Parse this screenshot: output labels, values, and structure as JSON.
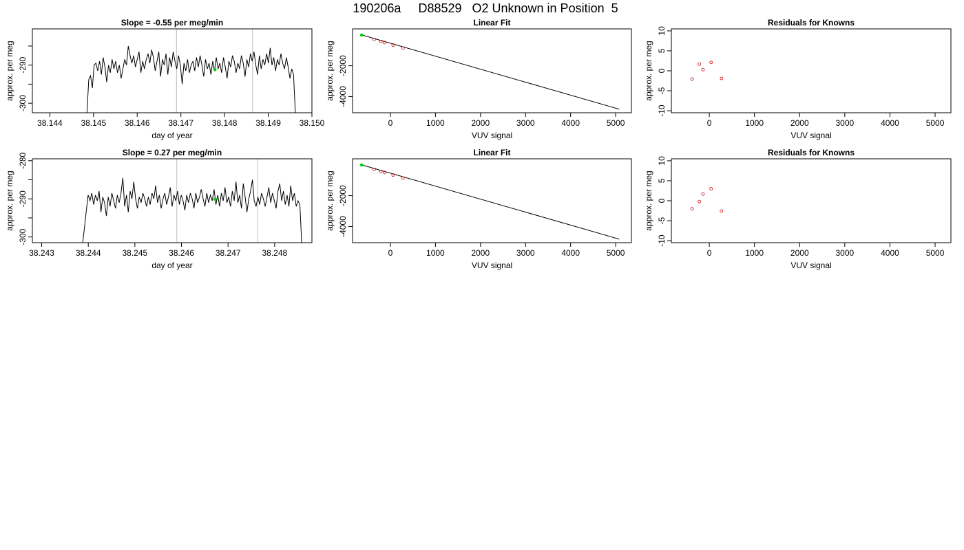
{
  "page": {
    "title": "190206a     D88529   O2 Unknown in Position  5"
  },
  "chart_data": [
    {
      "type": "line",
      "title": "Slope =  -0.55  per meg/min",
      "xlabel": "day of year",
      "ylabel": "approx. per meg",
      "xlim": [
        38.1436,
        38.15
      ],
      "ylim": [
        -302.5,
        -280.5
      ],
      "xticks": [
        38.144,
        38.145,
        38.146,
        38.147,
        38.148,
        38.149,
        38.15
      ],
      "xtick_labels": [
        "38.144",
        "38.145",
        "38.146",
        "38.147",
        "38.148",
        "38.149",
        "38.150"
      ],
      "yticks": [
        -300,
        -295,
        -290,
        -285
      ],
      "ytick_labels": [
        "-300",
        "",
        "-290",
        ""
      ],
      "vlines": [
        38.1469,
        38.14864
      ],
      "x_start": 38.14485,
      "x_end": 38.14962,
      "values": [
        -302.5,
        -293.8,
        -292.8,
        -296,
        -290,
        -289.5,
        -291.5,
        -289,
        -292.5,
        -288,
        -290.5,
        -294.5,
        -290,
        -292,
        -288.5,
        -291,
        -289,
        -292,
        -290,
        -293.5,
        -291,
        -288.5,
        -290,
        -285,
        -287.5,
        -289.5,
        -287.5,
        -290.5,
        -288.5,
        -286.5,
        -292,
        -289,
        -291,
        -288.5,
        -287,
        -289.5,
        -286,
        -288,
        -291.5,
        -289,
        -286.5,
        -293,
        -288.5,
        -290,
        -287,
        -292.5,
        -288,
        -290.5,
        -286.5,
        -289,
        -291,
        -287.5,
        -290,
        -295,
        -289.5,
        -291.5,
        -288.5,
        -292,
        -290,
        -289,
        -291.5,
        -288,
        -290.5,
        -287.5,
        -290,
        -293,
        -288.5,
        -291,
        -289.5,
        -292.5,
        -289,
        -291.5,
        -288,
        -291,
        -289.5,
        -292,
        -288,
        -290.5,
        -293.5,
        -289,
        -290.5,
        -287.5,
        -289,
        -292,
        -289.5,
        -291,
        -287.5,
        -289.5,
        -293,
        -288.5,
        -290.5,
        -287,
        -289,
        -286.5,
        -290,
        -292.5,
        -287.5,
        -291,
        -288.5,
        -290,
        -287,
        -289.5,
        -285.5,
        -290,
        -288,
        -291.5,
        -288.5,
        -290,
        -287,
        -289.5,
        -291,
        -288,
        -290.5,
        -293.5,
        -291,
        -292.5,
        -302.5
      ],
      "marker": {
        "x": 38.14778,
        "y": -291.2
      },
      "line_color": "#000000",
      "vline_color": "#bebebe",
      "marker_color": "#00cd00"
    },
    {
      "type": "scatter",
      "title": "Linear Fit",
      "xlabel": "VUV signal",
      "ylabel": "approx. per meg",
      "xlim": [
        -840,
        5350
      ],
      "ylim": [
        -5050,
        390
      ],
      "xticks": [
        0,
        1000,
        2000,
        3000,
        4000,
        5000
      ],
      "xtick_labels": [
        "0",
        "1000",
        "2000",
        "3000",
        "4000",
        "5000"
      ],
      "yticks": [
        -4000,
        -2000
      ],
      "ytick_labels": [
        "-4000",
        "-2000"
      ],
      "line": {
        "x": [
          -640,
          5080
        ],
        "y": [
          0,
          -4820
        ]
      },
      "knowns": {
        "x": [
          -360,
          -210,
          -130,
          60,
          280
        ],
        "y": [
          -300,
          -430,
          -500,
          -660,
          -850
        ]
      },
      "unknown": {
        "x": [
          -640
        ],
        "y": [
          -10
        ]
      },
      "line_color": "#000000",
      "known_color": "#cd0000",
      "unknown_color": "#00cd00"
    },
    {
      "type": "scatter",
      "title": "Residuals for Knowns",
      "xlabel": "VUV signal",
      "ylabel": "approx. per meg",
      "xlim": [
        -840,
        5350
      ],
      "ylim": [
        -10.5,
        10.5
      ],
      "xticks": [
        0,
        1000,
        2000,
        3000,
        4000,
        5000
      ],
      "xtick_labels": [
        "0",
        "1000",
        "2000",
        "3000",
        "4000",
        "5000"
      ],
      "yticks": [
        -10,
        -5,
        0,
        5,
        10
      ],
      "ytick_labels": [
        "-10",
        "-5",
        "0",
        "5",
        "10"
      ],
      "points": {
        "x": [
          -380,
          -220,
          -140,
          40,
          270
        ],
        "y": [
          -2.1,
          1.7,
          0.3,
          2.1,
          -1.9
        ]
      },
      "point_color": "#cd0000"
    },
    {
      "type": "line",
      "title": "Slope =  0.27  per meg/min",
      "xlabel": "day of year",
      "ylabel": "approx. per meg",
      "xlim": [
        38.2428,
        38.2488
      ],
      "ylim": [
        -301.5,
        -279.5
      ],
      "xticks": [
        38.243,
        38.244,
        38.245,
        38.246,
        38.247,
        38.248
      ],
      "xtick_labels": [
        "38.243",
        "38.244",
        "38.245",
        "38.246",
        "38.247",
        "38.248"
      ],
      "yticks": [
        -300,
        -295,
        -290,
        -285,
        -280
      ],
      "ytick_labels": [
        "-300",
        "",
        "-290",
        "",
        "-280"
      ],
      "vlines": [
        38.2459,
        38.24764
      ],
      "x_start": 38.24388,
      "x_end": 38.24858,
      "values": [
        -301.5,
        -297.5,
        -293,
        -289,
        -290.5,
        -288.5,
        -291.5,
        -289,
        -290.5,
        -288,
        -293.5,
        -289.5,
        -291,
        -294.5,
        -289.5,
        -292,
        -288.5,
        -290.5,
        -292.5,
        -289,
        -291,
        -288.5,
        -284.5,
        -292,
        -289,
        -293.5,
        -288,
        -290,
        -285.5,
        -290,
        -292.5,
        -289.5,
        -291,
        -288.5,
        -290,
        -292,
        -289.5,
        -291.5,
        -288.5,
        -290,
        -286.5,
        -291,
        -289,
        -292.5,
        -290,
        -288.5,
        -291.5,
        -289.5,
        -287,
        -292,
        -289,
        -290.5,
        -288,
        -291.5,
        -289,
        -290.5,
        -293,
        -289,
        -291,
        -288.5,
        -290,
        -292.5,
        -288.5,
        -291,
        -289.5,
        -287.5,
        -290,
        -292,
        -288.5,
        -291,
        -289,
        -290.5,
        -287.5,
        -291.5,
        -289,
        -292,
        -288.5,
        -290.5,
        -287,
        -291,
        -289.5,
        -292,
        -288,
        -290.5,
        -285.5,
        -291,
        -289,
        -292.5,
        -286,
        -289.5,
        -293.5,
        -290,
        -288,
        -285,
        -290.5,
        -292,
        -289.5,
        -291.5,
        -288.5,
        -290,
        -292,
        -289.5,
        -287,
        -291,
        -288.5,
        -290.5,
        -292.5,
        -288,
        -286,
        -290.5,
        -288,
        -291.5,
        -289,
        -292,
        -286.5,
        -290.5,
        -288.5,
        -292,
        -290.5,
        -291.5,
        -301.5
      ],
      "marker": {
        "x": 38.24672,
        "y": -290.1
      },
      "line_color": "#000000",
      "vline_color": "#bebebe",
      "marker_color": "#00cd00"
    },
    {
      "type": "scatter",
      "title": "Linear Fit",
      "xlabel": "VUV signal",
      "ylabel": "approx. per meg",
      "xlim": [
        -840,
        5350
      ],
      "ylim": [
        -5050,
        390
      ],
      "xticks": [
        0,
        1000,
        2000,
        3000,
        4000,
        5000
      ],
      "xtick_labels": [
        "0",
        "1000",
        "2000",
        "3000",
        "4000",
        "5000"
      ],
      "yticks": [
        -4000,
        -2000
      ],
      "ytick_labels": [
        "-4000",
        "-2000"
      ],
      "line": {
        "x": [
          -640,
          5080
        ],
        "y": [
          0,
          -4820
        ]
      },
      "knowns": {
        "x": [
          -360,
          -210,
          -130,
          60,
          280
        ],
        "y": [
          -300,
          -430,
          -500,
          -660,
          -850
        ]
      },
      "unknown": {
        "x": [
          -640
        ],
        "y": [
          -10
        ]
      },
      "line_color": "#000000",
      "known_color": "#cd0000",
      "unknown_color": "#00cd00"
    },
    {
      "type": "scatter",
      "title": "Residuals for Knowns",
      "xlabel": "VUV signal",
      "ylabel": "approx. per meg",
      "xlim": [
        -840,
        5350
      ],
      "ylim": [
        -10.5,
        10.5
      ],
      "xticks": [
        0,
        1000,
        2000,
        3000,
        4000,
        5000
      ],
      "xtick_labels": [
        "0",
        "1000",
        "2000",
        "3000",
        "4000",
        "5000"
      ],
      "yticks": [
        -10,
        -5,
        0,
        5,
        10
      ],
      "ytick_labels": [
        "-10",
        "-5",
        "0",
        "5",
        "10"
      ],
      "points": {
        "x": [
          -380,
          -220,
          -140,
          40,
          270
        ],
        "y": [
          -2.0,
          -0.2,
          1.7,
          3.0,
          -2.6
        ]
      },
      "point_color": "#cd0000"
    }
  ]
}
